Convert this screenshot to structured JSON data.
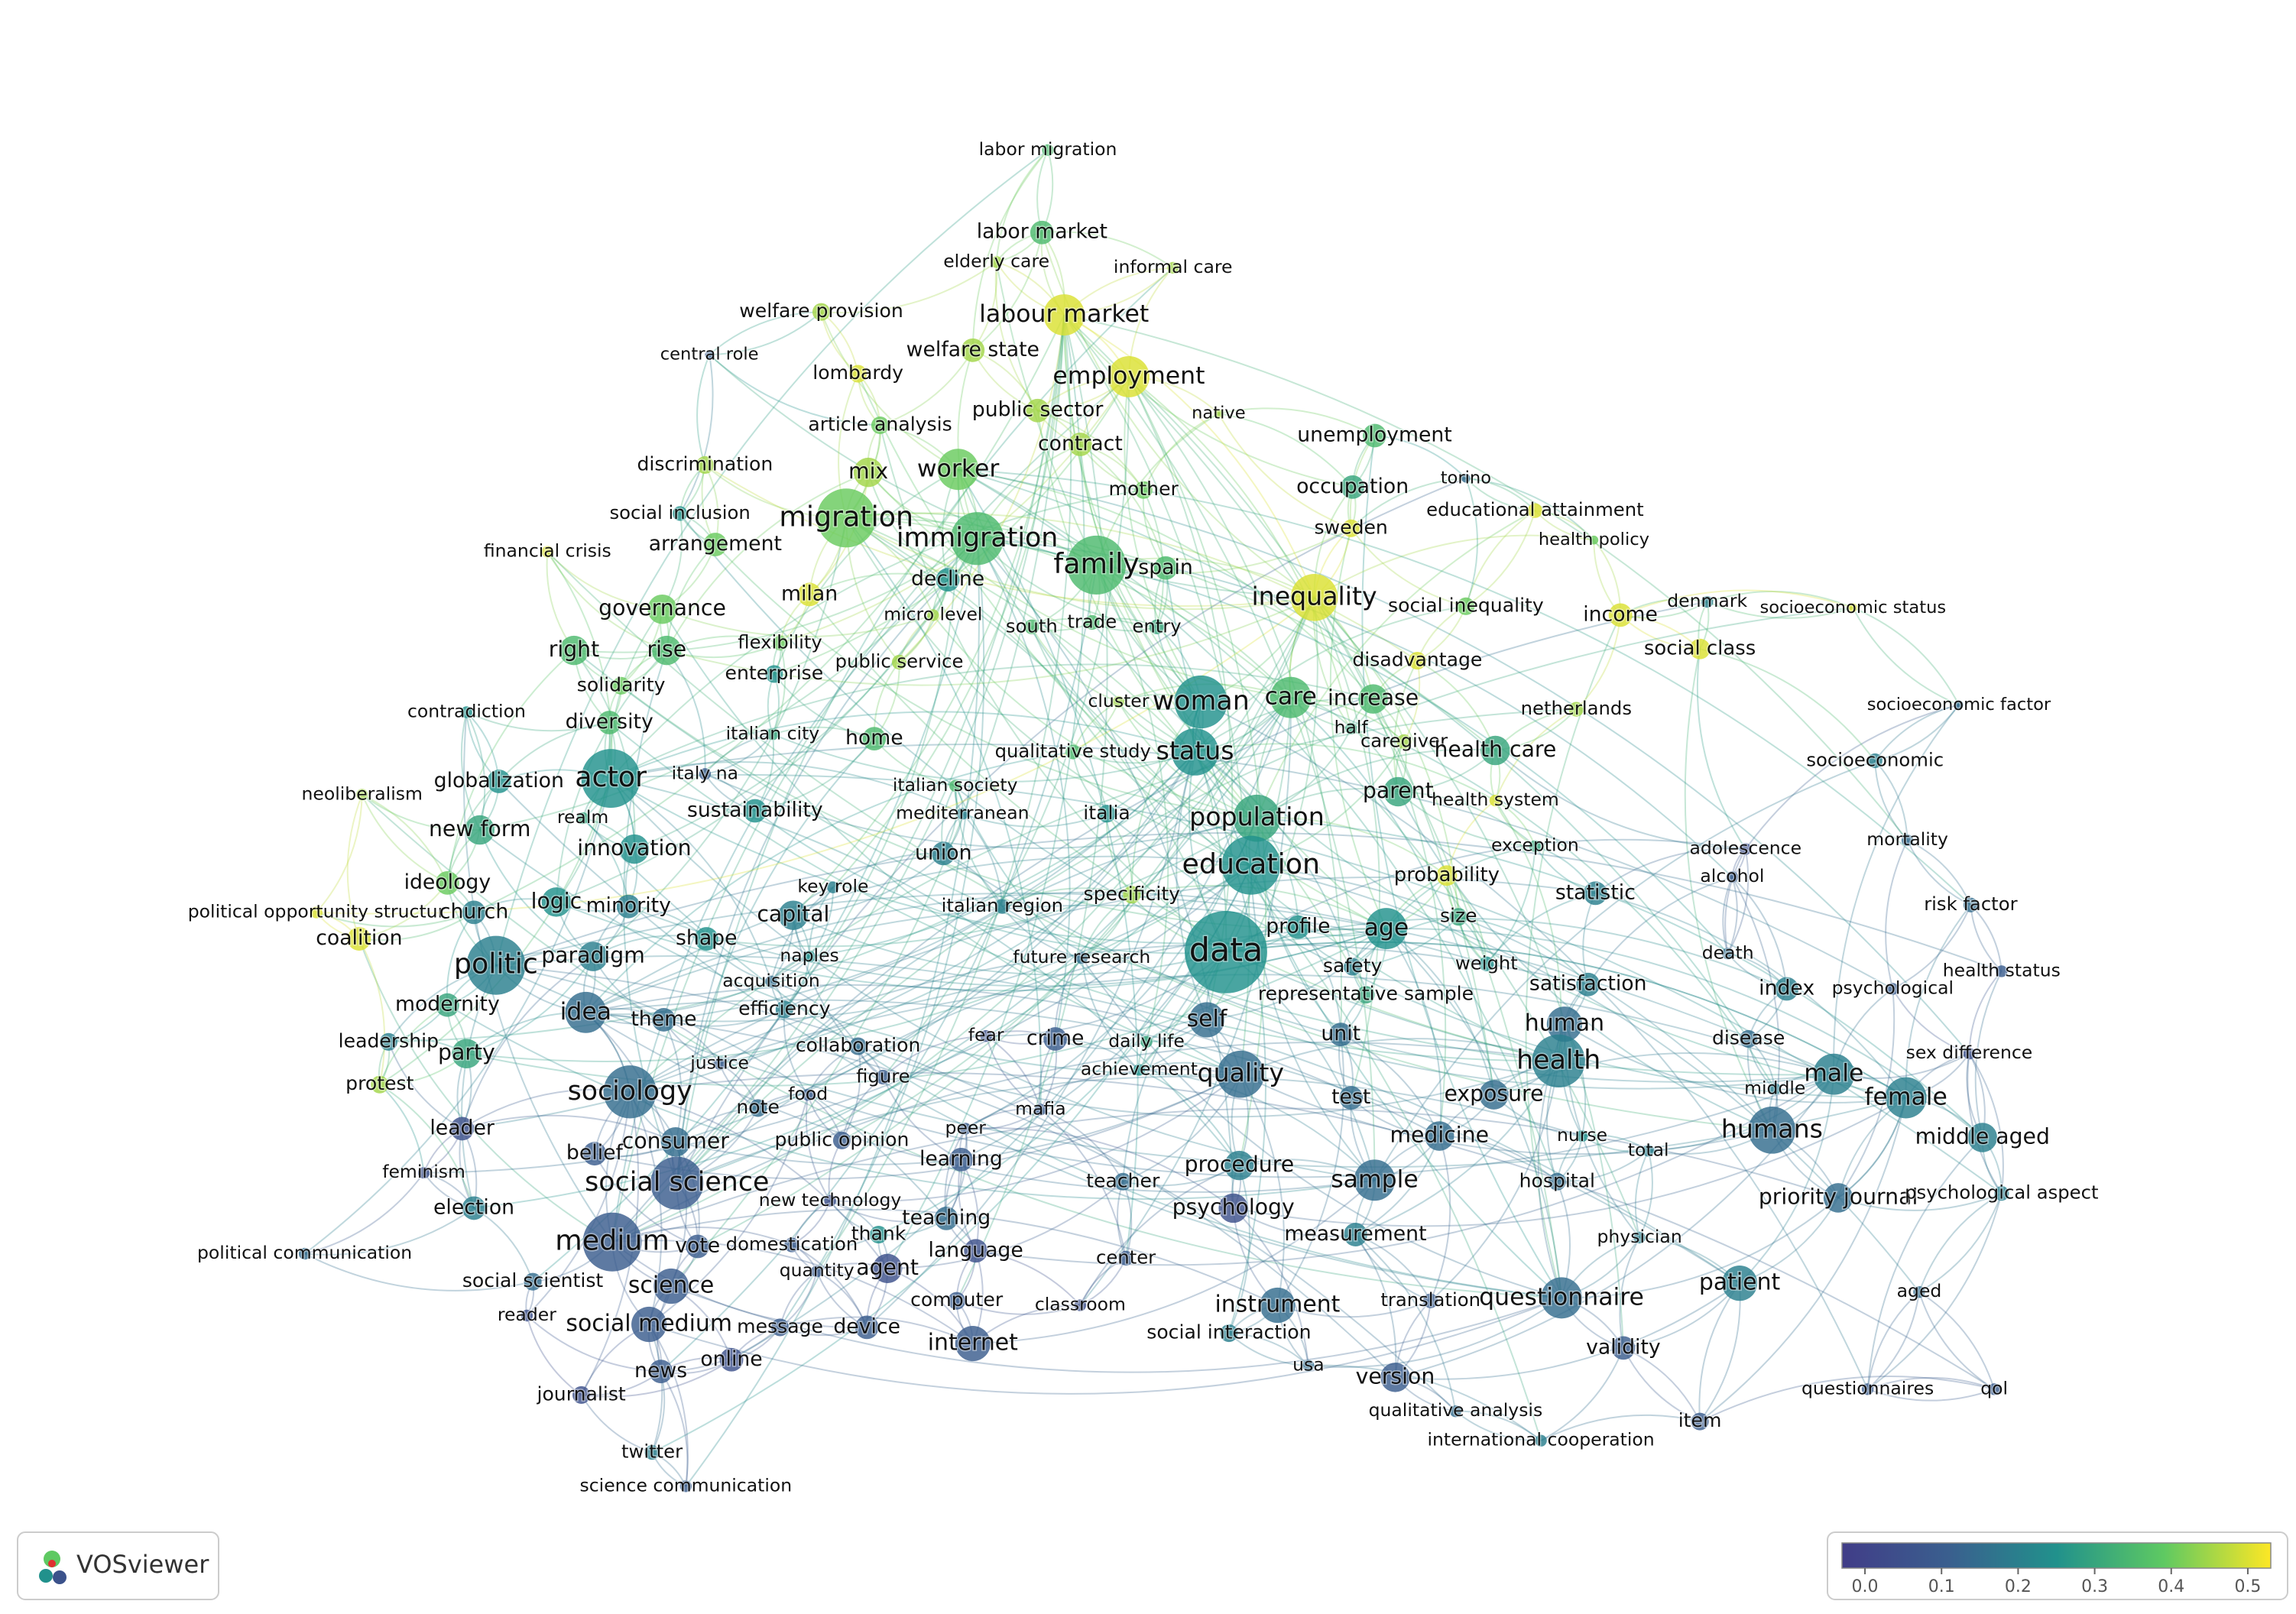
{
  "logo_text": "VOSviewer",
  "color_scale": {
    "lim": [
      -0.03,
      0.53
    ],
    "ticks": [
      {
        "value": 0,
        "label": "0.0"
      },
      0.1,
      0.2,
      0.3,
      0.4,
      0.5
    ]
  },
  "nodes": [
    {
      "label": "labor migration",
      "score": 0.35
    },
    {
      "label": "labor market",
      "score": 0.35
    },
    {
      "label": "elderly care",
      "score": 0.45
    },
    {
      "label": "informal care",
      "score": 0.45
    },
    {
      "label": "labour market",
      "score": 0.5
    },
    {
      "label": "welfare provision",
      "score": 0.45
    },
    {
      "label": "central role",
      "score": 0.1
    },
    {
      "label": "welfare state",
      "score": 0.45
    },
    {
      "label": "lombardy",
      "score": 0.5
    },
    {
      "label": "employment",
      "score": 0.5
    },
    {
      "label": "public sector",
      "score": 0.45
    },
    {
      "label": "native",
      "score": 0.45
    },
    {
      "label": "article analysis",
      "score": 0.4
    },
    {
      "label": "contract",
      "score": 0.45
    },
    {
      "label": "unemployment",
      "score": 0.35
    },
    {
      "label": "discrimination",
      "score": 0.45
    },
    {
      "label": "mix",
      "score": 0.45
    },
    {
      "label": "worker",
      "score": 0.4
    },
    {
      "label": "torino",
      "score": 0.15
    },
    {
      "label": "occupation",
      "score": 0.3
    },
    {
      "label": "mother",
      "score": 0.4
    },
    {
      "label": "social inclusion",
      "score": 0.25
    },
    {
      "label": "migration",
      "score": 0.4
    },
    {
      "label": "educational attainment",
      "score": 0.5
    },
    {
      "label": "immigration",
      "score": 0.35
    },
    {
      "label": "sweden",
      "score": 0.5
    },
    {
      "label": "financial crisis",
      "score": 0.5
    },
    {
      "label": "arrangement",
      "score": 0.4
    },
    {
      "label": "health policy",
      "score": 0.4
    },
    {
      "label": "family",
      "score": 0.35
    },
    {
      "label": "spain",
      "score": 0.35
    },
    {
      "label": "decline",
      "score": 0.25
    },
    {
      "label": "milan",
      "score": 0.5
    },
    {
      "label": "inequality",
      "score": 0.5
    },
    {
      "label": "governance",
      "score": 0.4
    },
    {
      "label": "denmark",
      "score": 0.2
    },
    {
      "label": "social inequality",
      "score": 0.4
    },
    {
      "label": "micro level",
      "score": 0.45
    },
    {
      "label": "income",
      "score": 0.5
    },
    {
      "label": "socioeconomic status",
      "score": 0.5
    },
    {
      "label": "south",
      "score": 0.35
    },
    {
      "label": "trade",
      "score": 0.35
    },
    {
      "label": "entry",
      "score": 0.3
    },
    {
      "label": "right",
      "score": 0.35
    },
    {
      "label": "rise",
      "score": 0.35
    },
    {
      "label": "flexibility",
      "score": 0.4
    },
    {
      "label": "public service",
      "score": 0.45
    },
    {
      "label": "social class",
      "score": 0.5
    },
    {
      "label": "disadvantage",
      "score": 0.5
    },
    {
      "label": "enterprise",
      "score": 0.25
    },
    {
      "label": "solidarity",
      "score": 0.4
    },
    {
      "label": "woman",
      "score": 0.25
    },
    {
      "label": "care",
      "score": 0.35
    },
    {
      "label": "increase",
      "score": 0.35
    },
    {
      "label": "cluster",
      "score": 0.45
    },
    {
      "label": "netherlands",
      "score": 0.45
    },
    {
      "label": "socioeconomic factor",
      "score": 0.15
    },
    {
      "label": "contradiction",
      "score": 0.25
    },
    {
      "label": "diversity",
      "score": 0.35
    },
    {
      "label": "italian city",
      "score": 0.3
    },
    {
      "label": "home",
      "score": 0.35
    },
    {
      "label": "half",
      "score": 0.3
    },
    {
      "label": "caregiver",
      "score": 0.45
    },
    {
      "label": "qualitative study",
      "score": 0.35
    },
    {
      "label": "status",
      "score": 0.25
    },
    {
      "label": "health care",
      "score": 0.3
    },
    {
      "label": "actor",
      "score": 0.25
    },
    {
      "label": "globalization",
      "score": 0.25
    },
    {
      "label": "italy na",
      "score": 0.1
    },
    {
      "label": "italian society",
      "score": 0.35
    },
    {
      "label": "socioeconomic",
      "score": 0.2
    },
    {
      "label": "neoliberalism",
      "score": 0.45
    },
    {
      "label": "parent",
      "score": 0.3
    },
    {
      "label": "sustainability",
      "score": 0.25
    },
    {
      "label": "mediterranean",
      "score": 0.2
    },
    {
      "label": "italia",
      "score": 0.25
    },
    {
      "label": "population",
      "score": 0.3
    },
    {
      "label": "health system",
      "score": 0.5
    },
    {
      "label": "realm",
      "score": 0.3
    },
    {
      "label": "new form",
      "score": 0.3
    },
    {
      "label": "adolescence",
      "score": 0.05
    },
    {
      "label": "mortality",
      "score": 0.15
    },
    {
      "label": "exception",
      "score": 0.3
    },
    {
      "label": "innovation",
      "score": 0.25
    },
    {
      "label": "union",
      "score": 0.2
    },
    {
      "label": "education",
      "score": 0.25
    },
    {
      "label": "alcohol",
      "score": 0.1
    },
    {
      "label": "probability",
      "score": 0.5
    },
    {
      "label": "ideology",
      "score": 0.4
    },
    {
      "label": "logic",
      "score": 0.25
    },
    {
      "label": "minority",
      "score": 0.2
    },
    {
      "label": "key role",
      "score": 0.2
    },
    {
      "label": "statistic",
      "score": 0.2
    },
    {
      "label": "specificity",
      "score": 0.45
    },
    {
      "label": "risk factor",
      "score": 0.15
    },
    {
      "label": "political opportunity structur",
      "score": 0.5
    },
    {
      "label": "church",
      "score": 0.2
    },
    {
      "label": "italian region",
      "score": 0.2
    },
    {
      "label": "capital",
      "score": 0.2
    },
    {
      "label": "size",
      "score": 0.3
    },
    {
      "label": "profile",
      "score": 0.25
    },
    {
      "label": "age",
      "score": 0.25
    },
    {
      "label": "coalition",
      "score": 0.5
    },
    {
      "label": "shape",
      "score": 0.25
    },
    {
      "label": "data",
      "score": 0.25
    },
    {
      "label": "future research",
      "score": 0.15
    },
    {
      "label": "naples",
      "score": 0.25
    },
    {
      "label": "death",
      "score": 0.15
    },
    {
      "label": "politic",
      "score": 0.2
    },
    {
      "label": "paradigm",
      "score": 0.2
    },
    {
      "label": "weight",
      "score": 0.25
    },
    {
      "label": "safety",
      "score": 0.2
    },
    {
      "label": "health status",
      "score": 0.1
    },
    {
      "label": "acquisition",
      "score": 0.15
    },
    {
      "label": "satisfaction",
      "score": 0.2
    },
    {
      "label": "index",
      "score": 0.2
    },
    {
      "label": "psychological",
      "score": 0.1
    },
    {
      "label": "representative sample",
      "score": 0.3
    },
    {
      "label": "modernity",
      "score": 0.3
    },
    {
      "label": "idea",
      "score": 0.15
    },
    {
      "label": "efficiency",
      "score": 0.2
    },
    {
      "label": "theme",
      "score": 0.15
    },
    {
      "label": "self",
      "score": 0.15
    },
    {
      "label": "human",
      "score": 0.15
    },
    {
      "label": "unit",
      "score": 0.15
    },
    {
      "label": "crime",
      "score": 0.1
    },
    {
      "label": "leadership",
      "score": 0.2
    },
    {
      "label": "fear",
      "score": 0.05
    },
    {
      "label": "daily life",
      "score": 0.3
    },
    {
      "label": "collaboration",
      "score": 0.15
    },
    {
      "label": "disease",
      "score": 0.15
    },
    {
      "label": "party",
      "score": 0.3
    },
    {
      "label": "sex difference",
      "score": 0.05
    },
    {
      "label": "justice",
      "score": 0.1
    },
    {
      "label": "health",
      "score": 0.2
    },
    {
      "label": "quality",
      "score": 0.15
    },
    {
      "label": "male",
      "score": 0.2
    },
    {
      "label": "achievement",
      "score": 0.25
    },
    {
      "label": "figure",
      "score": 0.1
    },
    {
      "label": "protest",
      "score": 0.45
    },
    {
      "label": "sociology",
      "score": 0.15
    },
    {
      "label": "food",
      "score": 0.1
    },
    {
      "label": "test",
      "score": 0.15
    },
    {
      "label": "exposure",
      "score": 0.15
    },
    {
      "label": "female",
      "score": 0.2
    },
    {
      "label": "note",
      "score": 0.15
    },
    {
      "label": "mafia",
      "score": 0.1
    },
    {
      "label": "middle",
      "score": 0.2
    },
    {
      "label": "leader",
      "score": 0.05
    },
    {
      "label": "peer",
      "score": 0.1
    },
    {
      "label": "humans",
      "score": 0.15
    },
    {
      "label": "consumer",
      "score": 0.15
    },
    {
      "label": "public opinion",
      "score": 0.1
    },
    {
      "label": "medicine",
      "score": 0.15
    },
    {
      "label": "nurse",
      "score": 0.25
    },
    {
      "label": "middle aged",
      "score": 0.2
    },
    {
      "label": "belief",
      "score": 0.1
    },
    {
      "label": "total",
      "score": 0.2
    },
    {
      "label": "learning",
      "score": 0.1
    },
    {
      "label": "procedure",
      "score": 0.2
    },
    {
      "label": "feminism",
      "score": 0.05
    },
    {
      "label": "social science",
      "score": 0.1
    },
    {
      "label": "sample",
      "score": 0.15
    },
    {
      "label": "teacher",
      "score": 0.15
    },
    {
      "label": "hospital",
      "score": 0.15
    },
    {
      "label": "priority journal",
      "score": 0.15
    },
    {
      "label": "psychological aspect",
      "score": 0.2
    },
    {
      "label": "new technology",
      "score": 0.05
    },
    {
      "label": "election",
      "score": 0.2
    },
    {
      "label": "psychology",
      "score": 0.05
    },
    {
      "label": "teaching",
      "score": 0.15
    },
    {
      "label": "measurement",
      "score": 0.2
    },
    {
      "label": "thank",
      "score": 0.25
    },
    {
      "label": "physician",
      "score": 0.2
    },
    {
      "label": "medium",
      "score": 0.1
    },
    {
      "label": "vote",
      "score": 0.1
    },
    {
      "label": "domestication",
      "score": 0.1
    },
    {
      "label": "language",
      "score": 0.05
    },
    {
      "label": "political communication",
      "score": 0.15
    },
    {
      "label": "center",
      "score": 0.1
    },
    {
      "label": "agent",
      "score": 0.05
    },
    {
      "label": "quantity",
      "score": 0.1
    },
    {
      "label": "social scientist",
      "score": 0.15
    },
    {
      "label": "science",
      "score": 0.1
    },
    {
      "label": "patient",
      "score": 0.2
    },
    {
      "label": "aged",
      "score": 0.15
    },
    {
      "label": "questionnaire",
      "score": 0.15
    },
    {
      "label": "instrument",
      "score": 0.15
    },
    {
      "label": "translation",
      "score": 0.1
    },
    {
      "label": "computer",
      "score": 0.1
    },
    {
      "label": "classroom",
      "score": 0.05
    },
    {
      "label": "reader",
      "score": 0.05
    },
    {
      "label": "social medium",
      "score": 0.1
    },
    {
      "label": "message",
      "score": 0.1
    },
    {
      "label": "device",
      "score": 0.1
    },
    {
      "label": "social interaction",
      "score": 0.2
    },
    {
      "label": "validity",
      "score": 0.1
    },
    {
      "label": "internet",
      "score": 0.1
    },
    {
      "label": "online",
      "score": 0.05
    },
    {
      "label": "usa",
      "score": 0.15
    },
    {
      "label": "news",
      "score": 0.1
    },
    {
      "label": "version",
      "score": 0.1
    },
    {
      "label": "questionnaires",
      "score": 0.1
    },
    {
      "label": "qol",
      "score": 0.1
    },
    {
      "label": "journalist",
      "score": 0.05
    },
    {
      "label": "qualitative analysis",
      "score": 0.15
    },
    {
      "label": "item",
      "score": 0.1
    },
    {
      "label": "international cooperation",
      "score": 0.2
    },
    {
      "label": "twitter",
      "score": 0.2
    },
    {
      "label": "science communication",
      "score": 0.1
    }
  ]
}
